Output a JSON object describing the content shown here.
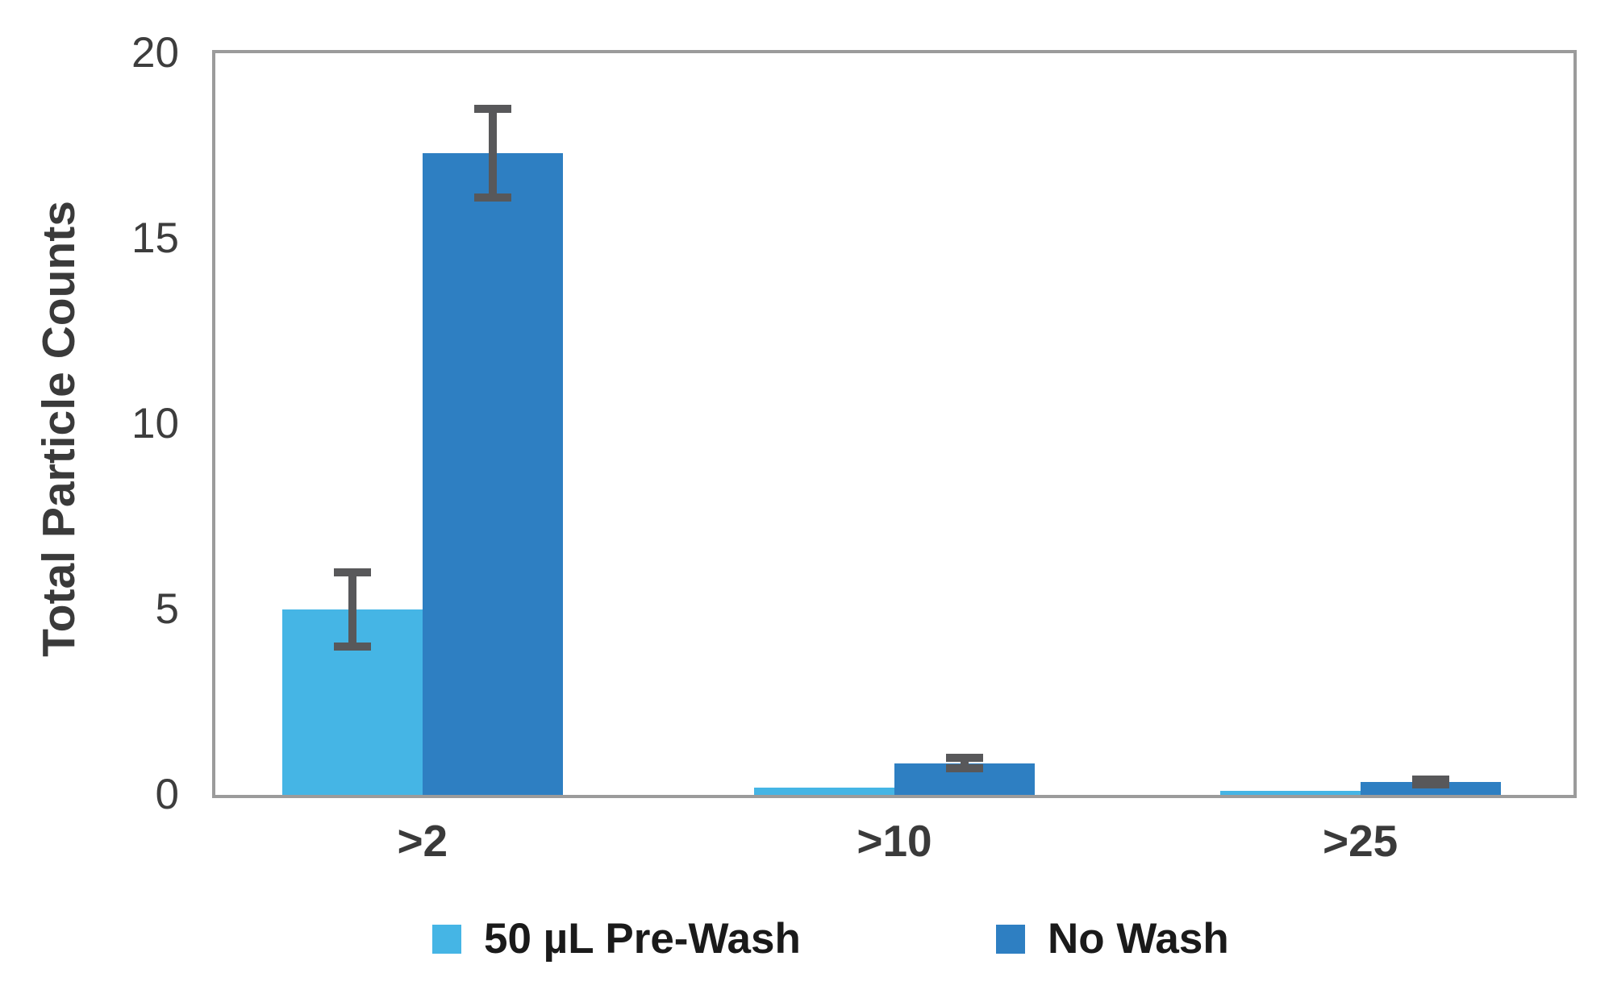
{
  "chart_data": {
    "type": "bar",
    "title": "",
    "xlabel": "",
    "ylabel": "Total Particle Counts",
    "categories": [
      ">2",
      ">10",
      ">25"
    ],
    "series": [
      {
        "name": "50 µL Pre-Wash",
        "color": "#45B5E5",
        "values": [
          5.0,
          0.2,
          0.1
        ],
        "errors": [
          1.1,
          null,
          null
        ]
      },
      {
        "name": "No Wash",
        "color": "#2E7FC2",
        "values": [
          17.3,
          0.85,
          0.35
        ],
        "errors": [
          1.3,
          0.25,
          0.18
        ]
      }
    ],
    "ylim": [
      0,
      20
    ],
    "yticks": [
      0,
      5,
      10,
      15,
      20
    ],
    "grid": false,
    "legend_position": "bottom",
    "error_bar_color": "#58585A",
    "axis_frame_color": "#9B9B9B",
    "tick_text_color": "#3D3D3D",
    "label_text_color": "#3A3A3A",
    "legend_text_color": "#1A1A1A"
  }
}
